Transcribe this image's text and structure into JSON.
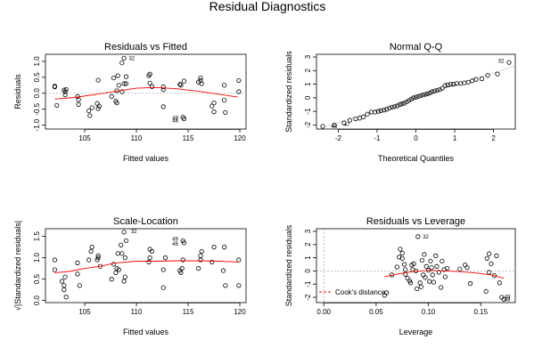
{
  "title": "Residual Diagnostics",
  "chart_data": [
    {
      "id": "rvf",
      "type": "scatter",
      "title": "Residuals vs Fitted",
      "xlabel": "Fitted values",
      "ylabel": "Residuals",
      "xlim": [
        101.2,
        120.6
      ],
      "ylim": [
        -1.12,
        1.22
      ],
      "xticks": [
        105,
        110,
        115,
        120
      ],
      "yticks": [
        -1.0,
        -0.5,
        0.0,
        0.5,
        1.0
      ],
      "ytick_labels": [
        "-1.0",
        "-0.5",
        "0.0",
        "0.5",
        "1.0"
      ],
      "smooth_color": "#ff0000",
      "smooth": [
        [
          102.1,
          -0.18
        ],
        [
          104,
          -0.13
        ],
        [
          106,
          -0.04
        ],
        [
          108,
          0.06
        ],
        [
          110,
          0.16
        ],
        [
          112,
          0.18
        ],
        [
          114,
          0.14
        ],
        [
          116,
          0.06
        ],
        [
          118,
          -0.03
        ],
        [
          119.8,
          -0.12
        ]
      ],
      "points": [
        [
          102.1,
          0.22
        ],
        [
          102.1,
          0.2
        ],
        [
          102.3,
          -0.38
        ],
        [
          103,
          0.1
        ],
        [
          103.1,
          0.05
        ],
        [
          103.1,
          -0.05
        ],
        [
          103.2,
          0.12
        ],
        [
          104.3,
          -0.1
        ],
        [
          104.4,
          -0.2
        ],
        [
          104.4,
          -0.35
        ],
        [
          105.4,
          -0.55
        ],
        [
          105.5,
          -0.7
        ],
        [
          105.7,
          -0.45
        ],
        [
          106.2,
          -0.32
        ],
        [
          106.3,
          0.41
        ],
        [
          106.3,
          -0.48
        ],
        [
          106.4,
          -0.4
        ],
        [
          107.6,
          -0.1
        ],
        [
          107.8,
          0.48
        ],
        [
          108,
          -0.25
        ],
        [
          108.1,
          -0.3
        ],
        [
          108.1,
          0.08
        ],
        [
          108.2,
          0.55
        ],
        [
          108.3,
          0.25
        ],
        [
          108.6,
          0.95
        ],
        [
          108.6,
          0.05
        ],
        [
          108.8,
          0.3
        ],
        [
          109,
          0.52
        ],
        [
          108.8,
          1.1
        ],
        [
          109,
          0.3
        ],
        [
          111.2,
          0.55
        ],
        [
          111.3,
          0.6
        ],
        [
          111.3,
          0.32
        ],
        [
          111.5,
          0.21
        ],
        [
          112.6,
          0.2
        ],
        [
          112.6,
          0.11
        ],
        [
          112.6,
          -0.42
        ],
        [
          114.2,
          0.28
        ],
        [
          114.3,
          0.25
        ],
        [
          114.6,
          0.38
        ],
        [
          114.5,
          -0.75
        ],
        [
          114.6,
          -0.8
        ],
        [
          116,
          0.35
        ],
        [
          116.2,
          0.48
        ],
        [
          116.2,
          0.4
        ],
        [
          116.3,
          0.3
        ],
        [
          117.3,
          -0.4
        ],
        [
          117.5,
          -0.58
        ],
        [
          117.5,
          -0.3
        ],
        [
          118.5,
          0.25
        ],
        [
          118.5,
          -0.22
        ],
        [
          118.6,
          -0.6
        ],
        [
          119.9,
          0.4
        ],
        [
          119.9,
          0.05
        ]
      ],
      "point_labels": [
        {
          "text": "32",
          "x": 109,
          "y": 1.1
        },
        {
          "text": "49",
          "x": 113.2,
          "y": -0.77
        },
        {
          "text": "48",
          "x": 113.2,
          "y": -0.86
        }
      ]
    },
    {
      "id": "qq",
      "type": "scatter",
      "title": "Normal Q-Q",
      "xlabel": "Theoretical Quantiles",
      "ylabel": "Standardized residuals",
      "xlim": [
        -2.56,
        2.56
      ],
      "ylim": [
        -2.3,
        3.2
      ],
      "xticks": [
        -2,
        -1,
        0,
        1,
        2
      ],
      "yticks": [
        -2,
        -1,
        0,
        1,
        2,
        3
      ],
      "line_style": "dotted",
      "line": [
        [
          -2.56,
          -2.35
        ],
        [
          2.56,
          2.35
        ]
      ],
      "points": [
        [
          -2.4,
          -2.1
        ],
        [
          -2.1,
          -2.0
        ],
        [
          -1.85,
          -1.85
        ],
        [
          -1.7,
          -1.65
        ],
        [
          -1.55,
          -1.55
        ],
        [
          -1.45,
          -1.5
        ],
        [
          -1.35,
          -1.4
        ],
        [
          -1.25,
          -1.2
        ],
        [
          -1.15,
          -1.05
        ],
        [
          -1.05,
          -1.05
        ],
        [
          -0.97,
          -1.0
        ],
        [
          -0.9,
          -0.95
        ],
        [
          -0.82,
          -0.9
        ],
        [
          -0.75,
          -0.85
        ],
        [
          -0.68,
          -0.75
        ],
        [
          -0.61,
          -0.7
        ],
        [
          -0.55,
          -0.65
        ],
        [
          -0.48,
          -0.6
        ],
        [
          -0.42,
          -0.5
        ],
        [
          -0.36,
          -0.45
        ],
        [
          -0.3,
          -0.4
        ],
        [
          -0.24,
          -0.3
        ],
        [
          -0.18,
          -0.2
        ],
        [
          -0.12,
          -0.1
        ],
        [
          -0.06,
          0.0
        ],
        [
          0.0,
          0.05
        ],
        [
          0.06,
          0.1
        ],
        [
          0.12,
          0.15
        ],
        [
          0.18,
          0.2
        ],
        [
          0.24,
          0.25
        ],
        [
          0.3,
          0.3
        ],
        [
          0.36,
          0.35
        ],
        [
          0.42,
          0.45
        ],
        [
          0.48,
          0.5
        ],
        [
          0.55,
          0.55
        ],
        [
          0.61,
          0.6
        ],
        [
          0.68,
          0.7
        ],
        [
          0.75,
          0.9
        ],
        [
          0.82,
          0.95
        ],
        [
          0.9,
          1.0
        ],
        [
          0.97,
          1.0
        ],
        [
          1.05,
          1.05
        ],
        [
          1.15,
          1.05
        ],
        [
          1.25,
          1.1
        ],
        [
          1.35,
          1.15
        ],
        [
          1.45,
          1.25
        ],
        [
          1.55,
          1.35
        ],
        [
          1.7,
          1.4
        ],
        [
          1.85,
          1.65
        ],
        [
          2.1,
          1.75
        ],
        [
          2.4,
          2.6
        ]
      ],
      "point_labels": [
        {
          "text": "32",
          "x": 2.05,
          "y": 2.72
        },
        {
          "text": "40",
          "x": -2.25,
          "y": -2.1
        },
        {
          "text": "47",
          "x": -1.92,
          "y": -1.96
        }
      ]
    },
    {
      "id": "sl",
      "type": "scatter",
      "title": "Scale-Location",
      "xlabel": "Fitted values",
      "ylabel": "√|Standardized residuals|",
      "xlim": [
        101.2,
        120.6
      ],
      "ylim": [
        -0.05,
        1.68
      ],
      "xticks": [
        105,
        110,
        115,
        120
      ],
      "yticks": [
        0.0,
        0.5,
        1.0,
        1.5
      ],
      "ytick_labels": [
        "0.0",
        "0.5",
        "1.0",
        "1.5"
      ],
      "smooth_color": "#ff0000",
      "smooth": [
        [
          102.1,
          0.65
        ],
        [
          103.5,
          0.68
        ],
        [
          105,
          0.75
        ],
        [
          106.5,
          0.8
        ],
        [
          108,
          0.88
        ],
        [
          110,
          0.92
        ],
        [
          112,
          0.92
        ],
        [
          114,
          0.93
        ],
        [
          116,
          0.93
        ],
        [
          118,
          0.92
        ],
        [
          119.8,
          0.9
        ]
      ],
      "points": [
        [
          102.1,
          0.72
        ],
        [
          102.1,
          0.95
        ],
        [
          102.8,
          0.45
        ],
        [
          103,
          0.35
        ],
        [
          103,
          0.25
        ],
        [
          103.1,
          0.55
        ],
        [
          103.2,
          0.08
        ],
        [
          104.3,
          0.62
        ],
        [
          104.3,
          0.88
        ],
        [
          104.5,
          0.35
        ],
        [
          105.4,
          0.95
        ],
        [
          105.6,
          1.15
        ],
        [
          105.7,
          1.25
        ],
        [
          106.2,
          0.95
        ],
        [
          106.3,
          1.05
        ],
        [
          106.3,
          1.0
        ],
        [
          106.5,
          0.8
        ],
        [
          107.6,
          0.5
        ],
        [
          107.8,
          0.85
        ],
        [
          108,
          0.65
        ],
        [
          108.1,
          0.75
        ],
        [
          108.2,
          1.1
        ],
        [
          108.3,
          0.72
        ],
        [
          108.5,
          1.3
        ],
        [
          108.6,
          1.1
        ],
        [
          108.8,
          0.45
        ],
        [
          108.9,
          0.55
        ],
        [
          108.9,
          1.0
        ],
        [
          109,
          1.4
        ],
        [
          108.8,
          1.6
        ],
        [
          111.2,
          0.9
        ],
        [
          111.3,
          1.2
        ],
        [
          111.3,
          1.0
        ],
        [
          111.5,
          1.15
        ],
        [
          112.6,
          0.72
        ],
        [
          112.6,
          0.3
        ],
        [
          112.8,
          1.0
        ],
        [
          114.2,
          0.7
        ],
        [
          114.3,
          0.65
        ],
        [
          114.4,
          0.75
        ],
        [
          114.5,
          0.95
        ],
        [
          114.5,
          1.4
        ],
        [
          114.6,
          1.35
        ],
        [
          116,
          0.75
        ],
        [
          116.2,
          0.95
        ],
        [
          116.2,
          1.05
        ],
        [
          116.3,
          1.15
        ],
        [
          117.3,
          0.9
        ],
        [
          117.5,
          1.25
        ],
        [
          118.4,
          0.7
        ],
        [
          118.5,
          1.25
        ],
        [
          118.6,
          0.35
        ],
        [
          119.9,
          0.95
        ],
        [
          119.9,
          0.35
        ]
      ],
      "point_labels": [
        {
          "text": "32",
          "x": 109.2,
          "y": 1.62
        },
        {
          "text": "49",
          "x": 113.2,
          "y": 1.44
        },
        {
          "text": "48",
          "x": 113.2,
          "y": 1.33
        }
      ]
    },
    {
      "id": "rvl",
      "type": "scatter",
      "title": "Residuals vs Leverage",
      "xlabel": "Leverage",
      "ylabel": "Standardized residuals",
      "xlim": [
        -0.007,
        0.183
      ],
      "ylim": [
        -2.4,
        3.2
      ],
      "xticks": [
        0.0,
        0.05,
        0.1,
        0.15
      ],
      "xtick_labels": [
        "0.00",
        "0.05",
        "0.10",
        "0.15"
      ],
      "yticks": [
        -2,
        -1,
        0,
        1,
        2,
        3
      ],
      "smooth_color": "#ff0000",
      "smooth": [
        [
          0.058,
          -0.45
        ],
        [
          0.07,
          -0.25
        ],
        [
          0.085,
          -0.05
        ],
        [
          0.1,
          0.05
        ],
        [
          0.115,
          0.0
        ],
        [
          0.13,
          -0.05
        ],
        [
          0.145,
          -0.15
        ],
        [
          0.16,
          -0.3
        ],
        [
          0.172,
          -0.55
        ]
      ],
      "legend": {
        "label": "Cook's distance",
        "position": "bottom-left",
        "line_color": "#ff0000",
        "line_style": "dashed"
      },
      "points": [
        [
          0.058,
          -1.85
        ],
        [
          0.06,
          -1.65
        ],
        [
          0.065,
          -0.3
        ],
        [
          0.07,
          0.3
        ],
        [
          0.072,
          1.05
        ],
        [
          0.073,
          1.65
        ],
        [
          0.075,
          1.35
        ],
        [
          0.075,
          0.95
        ],
        [
          0.077,
          0.5
        ],
        [
          0.078,
          -0.25
        ],
        [
          0.078,
          0.1
        ],
        [
          0.08,
          -0.55
        ],
        [
          0.082,
          -0.75
        ],
        [
          0.083,
          -0.9
        ],
        [
          0.084,
          0.45
        ],
        [
          0.085,
          0.1
        ],
        [
          0.086,
          0.55
        ],
        [
          0.088,
          0.0
        ],
        [
          0.089,
          -1.35
        ],
        [
          0.09,
          2.6
        ],
        [
          0.092,
          -0.9
        ],
        [
          0.093,
          -1.2
        ],
        [
          0.094,
          0.8
        ],
        [
          0.095,
          -0.3
        ],
        [
          0.096,
          1.25
        ],
        [
          0.097,
          -0.5
        ],
        [
          0.098,
          0.35
        ],
        [
          0.1,
          0.05
        ],
        [
          0.101,
          -0.8
        ],
        [
          0.102,
          0.75
        ],
        [
          0.103,
          0.25
        ],
        [
          0.104,
          -0.3
        ],
        [
          0.105,
          -0.85
        ],
        [
          0.107,
          1.15
        ],
        [
          0.108,
          0.35
        ],
        [
          0.11,
          -0.1
        ],
        [
          0.112,
          -1.25
        ],
        [
          0.113,
          0.75
        ],
        [
          0.115,
          0.1
        ],
        [
          0.116,
          -0.45
        ],
        [
          0.118,
          0.2
        ],
        [
          0.13,
          0.15
        ],
        [
          0.135,
          0.45
        ],
        [
          0.137,
          0.25
        ],
        [
          0.14,
          -0.95
        ],
        [
          0.155,
          -1.55
        ],
        [
          0.156,
          0.95
        ],
        [
          0.158,
          1.3
        ],
        [
          0.16,
          0.55
        ],
        [
          0.163,
          -0.35
        ],
        [
          0.165,
          1.15
        ],
        [
          0.17,
          -2.0
        ],
        [
          0.172,
          -2.15
        ],
        [
          0.168,
          -0.9
        ],
        [
          0.158,
          -0.1
        ]
      ],
      "point_labels": [
        {
          "text": "32",
          "x": 0.092,
          "y": 2.6
        },
        {
          "text": "49",
          "x": 0.17,
          "y": -1.95
        },
        {
          "text": "48",
          "x": 0.17,
          "y": -2.18
        }
      ]
    }
  ]
}
